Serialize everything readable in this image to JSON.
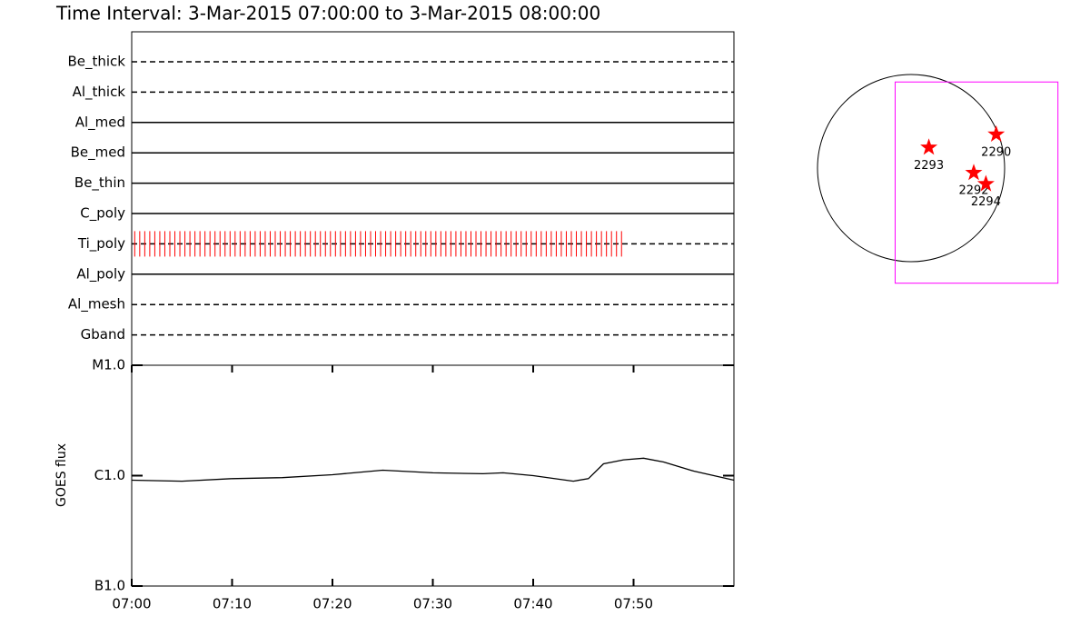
{
  "title": "Time Interval:  3-Mar-2015 07:00:00 to  3-Mar-2015 08:00:00",
  "chart_data": [
    {
      "type": "timeline",
      "categories": [
        "Be_thick",
        "Al_thick",
        "Al_med",
        "Be_med",
        "Be_thin",
        "C_poly",
        "Ti_poly",
        "Al_poly",
        "Al_mesh",
        "Gband"
      ],
      "line_styles": [
        "dashed",
        "dashed",
        "solid",
        "solid",
        "solid",
        "solid",
        "dashed",
        "solid",
        "dashed",
        "dashed"
      ],
      "xlim": [
        0,
        60
      ],
      "exposures": {
        "color": "#ff0000",
        "row": 6,
        "x": [
          0.3,
          0.8,
          1.3,
          1.8,
          2.3,
          2.8,
          3.3,
          3.8,
          4.3,
          4.8,
          5.3,
          5.8,
          6.3,
          6.8,
          7.3,
          7.8,
          8.3,
          8.8,
          9.3,
          9.8,
          10.3,
          10.8,
          11.3,
          11.8,
          12.3,
          12.8,
          13.3,
          13.8,
          14.3,
          14.8,
          15.3,
          15.8,
          16.3,
          16.8,
          17.3,
          17.8,
          18.3,
          18.8,
          19.3,
          19.8,
          20.3,
          20.8,
          21.3,
          21.8,
          22.3,
          22.8,
          23.3,
          23.8,
          24.3,
          24.8,
          25.3,
          25.8,
          26.3,
          26.8,
          27.3,
          27.8,
          28.3,
          28.8,
          29.3,
          29.8,
          30.3,
          30.8,
          31.3,
          31.8,
          32.3,
          32.8,
          33.3,
          33.8,
          34.3,
          34.8,
          35.3,
          35.8,
          36.3,
          36.8,
          37.3,
          37.8,
          38.3,
          38.8,
          39.3,
          39.8,
          40.3,
          40.8,
          41.3,
          41.8,
          42.3,
          42.8,
          43.3,
          43.8,
          44.3,
          44.8,
          45.3,
          45.8,
          46.3,
          46.8,
          47.3,
          47.8,
          48.3,
          48.8
        ]
      }
    },
    {
      "type": "line",
      "ylabel": "GOES flux",
      "log_scale": true,
      "color": "#000000",
      "xlim": [
        0,
        60
      ],
      "xticks": [
        {
          "value": 0,
          "label": "07:00"
        },
        {
          "value": 10,
          "label": "07:10"
        },
        {
          "value": 20,
          "label": "07:20"
        },
        {
          "value": 30,
          "label": "07:30"
        },
        {
          "value": 40,
          "label": "07:40"
        },
        {
          "value": 50,
          "label": "07:50"
        }
      ],
      "ylim": [
        1e-07,
        1e-05
      ],
      "yticks": [
        {
          "value": 1e-07,
          "label": "B1.0"
        },
        {
          "value": 1e-06,
          "label": "C1.0"
        },
        {
          "value": 1e-05,
          "label": "M1.0"
        }
      ],
      "x": [
        0,
        5,
        10,
        15,
        20,
        25,
        30,
        35,
        37,
        40,
        44,
        45.5,
        47,
        49,
        51,
        53,
        56,
        60
      ],
      "values": [
        9.1e-07,
        8.9e-07,
        9.4e-07,
        9.6e-07,
        1.02e-06,
        1.12e-06,
        1.06e-06,
        1.04e-06,
        1.06e-06,
        1e-06,
        8.9e-07,
        9.4e-07,
        1.28e-06,
        1.39e-06,
        1.44e-06,
        1.33e-06,
        1.1e-06,
        9.1e-07
      ]
    },
    {
      "type": "map",
      "color": "#ff0000",
      "fov_color": "#ff00ff",
      "fov": [
        -0.17,
        1.57,
        0.92,
        -1.23
      ],
      "labels": [
        "2293",
        "2290",
        "2292",
        "2294"
      ],
      "x": [
        0.19,
        0.91,
        0.67,
        0.8
      ],
      "y": [
        0.22,
        0.36,
        -0.05,
        -0.17
      ]
    }
  ]
}
